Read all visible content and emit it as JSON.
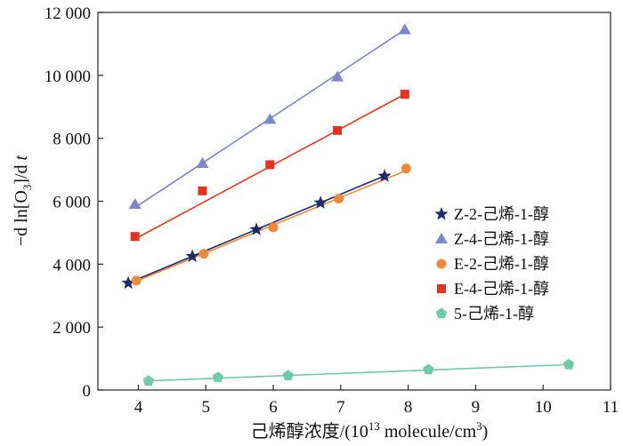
{
  "chart_data": {
    "type": "scatter",
    "xlabel_main": "己烯醇浓度/(10",
    "xlabel_sup": "13",
    "xlabel_unit": " molecule/cm",
    "xlabel_unit_sup": "3",
    "xlabel_close": ")",
    "ylabel_prefix": "−d ln[O",
    "ylabel_sub": "3",
    "ylabel_suffix": "]/d ",
    "ylabel_var": "t",
    "xlim": [
      3.4,
      11
    ],
    "ylim": [
      0,
      12000
    ],
    "xticks": [
      4,
      5,
      6,
      7,
      8,
      9,
      10,
      11
    ],
    "yticks": [
      0,
      2000,
      4000,
      6000,
      8000,
      10000,
      12000
    ],
    "ytick_labels": [
      "0",
      "2 000",
      "4 000",
      "6 000",
      "8 000",
      "10 000",
      "12 000"
    ],
    "legend_position": "right",
    "series": [
      {
        "name": "Z-2-己烯-1-醇",
        "marker": "star",
        "color": "#1f2a6b",
        "x": [
          3.85,
          4.8,
          5.75,
          6.7,
          7.65
        ],
        "y": [
          3400,
          4250,
          5100,
          5950,
          6800
        ],
        "fit": [
          [
            3.85,
            3400
          ],
          [
            7.7,
            6850
          ]
        ]
      },
      {
        "name": "Z-4-己烯-1-醇",
        "marker": "triangle",
        "color": "#7b87c6",
        "x": [
          3.95,
          4.95,
          5.95,
          6.95,
          7.95
        ],
        "y": [
          5900,
          7200,
          8600,
          9950,
          11450
        ],
        "fit": [
          [
            3.95,
            5800
          ],
          [
            7.95,
            11450
          ]
        ]
      },
      {
        "name": "E-2-己烯-1-醇",
        "marker": "circle",
        "color": "#ee8a3c",
        "x": [
          3.97,
          4.97,
          6.0,
          6.97,
          7.97
        ],
        "y": [
          3480,
          4330,
          5170,
          6080,
          7040
        ],
        "fit": [
          [
            3.9,
            3400
          ],
          [
            8.0,
            7000
          ]
        ]
      },
      {
        "name": "E-4-己烯-1-醇",
        "marker": "square",
        "color": "#e63222",
        "x": [
          3.95,
          4.95,
          5.95,
          6.95,
          7.95
        ],
        "y": [
          4880,
          6330,
          7160,
          8250,
          9400
        ],
        "fit": [
          [
            3.95,
            4800
          ],
          [
            7.95,
            9400
          ]
        ]
      },
      {
        "name": "5-己烯-1-醇",
        "marker": "pentagon",
        "color": "#6fcaa5",
        "x": [
          4.15,
          5.18,
          6.22,
          8.3,
          10.38
        ],
        "y": [
          290,
          400,
          460,
          650,
          810
        ],
        "fit": [
          [
            4.15,
            290
          ],
          [
            10.4,
            810
          ]
        ]
      }
    ]
  }
}
